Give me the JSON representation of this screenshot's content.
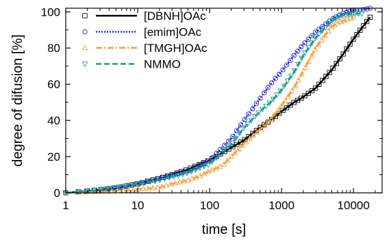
{
  "chart_data": {
    "type": "scatter",
    "title": "",
    "xlabel": "time [s]",
    "ylabel": "degree of difusion [%]",
    "xscale": "log",
    "xlim": [
      1,
      25000
    ],
    "ylim": [
      0,
      102
    ],
    "x_ticks": [
      1,
      10,
      100,
      1000,
      10000
    ],
    "x_tick_labels": [
      "1",
      "10",
      "100",
      "1000",
      "10000"
    ],
    "y_ticks": [
      0,
      20,
      40,
      60,
      80,
      100
    ],
    "y_tick_labels": [
      "0",
      "20",
      "40",
      "60",
      "80",
      "100"
    ],
    "grid": false,
    "legend_position": "top-left",
    "series": [
      {
        "name": "[DBNH]OAc",
        "color": "#000000",
        "marker": "square",
        "line_style": "solid",
        "x": [
          1,
          2,
          5,
          10,
          20,
          30,
          50,
          100,
          200,
          300,
          500,
          700,
          1000,
          1500,
          2000,
          3000,
          5000,
          7000,
          10000,
          13000,
          17000
        ],
        "values": [
          0,
          1,
          2.5,
          5,
          8,
          10,
          13,
          18,
          25,
          29,
          36,
          40,
          45,
          50,
          53,
          58,
          68,
          76,
          85,
          91,
          97
        ]
      },
      {
        "name": "[emim]OAc",
        "color": "#1f1fd6",
        "marker": "circle",
        "line_style": "dotted",
        "x": [
          1,
          2,
          5,
          10,
          20,
          50,
          100,
          200,
          300,
          500,
          700,
          1000,
          1500,
          2000,
          3000,
          5000,
          7000,
          10000,
          13000,
          17000
        ],
        "values": [
          0,
          1,
          3,
          5,
          8,
          12,
          18,
          30,
          40,
          52,
          60,
          67,
          76,
          82,
          89,
          96,
          99,
          101,
          101,
          102
        ]
      },
      {
        "name": "[TMGH]OAc",
        "color": "#f0a040",
        "marker": "triangle-up",
        "line_style": "dash-dot",
        "x": [
          1,
          2,
          5,
          10,
          20,
          30,
          50,
          70,
          100,
          150,
          200,
          300,
          500,
          700,
          1000,
          1500,
          2000,
          3000,
          5000,
          7000,
          10000
        ],
        "values": [
          0,
          0.5,
          1,
          2,
          3,
          5,
          7,
          9,
          12,
          15,
          20,
          27,
          35,
          40,
          48,
          58,
          67,
          80,
          92,
          95,
          97
        ]
      },
      {
        "name": "NMMO",
        "color": "#1a9a90",
        "marker": "triangle-down",
        "line_style": "dashed",
        "x": [
          1,
          2,
          5,
          10,
          20,
          50,
          100,
          200,
          300,
          500,
          700,
          1000,
          1500,
          2000,
          3000,
          5000,
          7000,
          10000,
          13000
        ],
        "values": [
          0,
          1,
          3,
          5,
          7,
          11,
          16,
          27,
          36,
          45,
          50,
          57,
          67,
          76,
          86,
          95,
          98,
          99,
          99
        ]
      }
    ]
  }
}
